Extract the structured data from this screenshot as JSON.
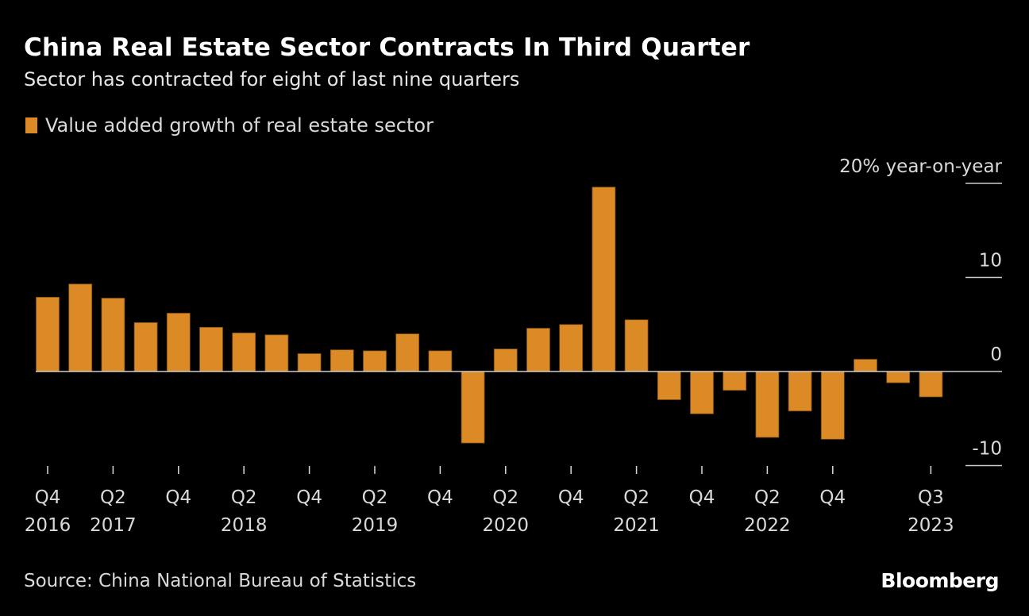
{
  "header": {
    "title": "China Real Estate Sector Contracts In Third Quarter",
    "subtitle": "Sector has contracted for eight of last nine quarters"
  },
  "legend": {
    "label": "Value added growth of real estate sector",
    "color": "#dc8a26"
  },
  "footer": {
    "source": "Source: China National Bureau of Statistics",
    "brand": "Bloomberg"
  },
  "colors": {
    "bar": "#dc8a26",
    "bar_edge": "#7a4a12",
    "zero_line": "#cccccc",
    "axis_text": "#d9d9d9",
    "background": "#000000"
  },
  "chart_data": {
    "type": "bar",
    "title": "China Real Estate Sector Contracts In Third Quarter",
    "subtitle": "Sector has contracted for eight of last nine quarters",
    "xlabel": "",
    "ylabel": "% year-on-year",
    "y_axis_position": "right",
    "y_unit_label": "20% year-on-year",
    "ylim": [
      -10,
      20
    ],
    "yticks": [
      {
        "value": 20,
        "label": "20% year-on-year"
      },
      {
        "value": 10,
        "label": "10"
      },
      {
        "value": 0,
        "label": "0"
      },
      {
        "value": -10,
        "label": "-10"
      }
    ],
    "legend": [
      "Value added growth of real estate sector"
    ],
    "legend_position": "top-left",
    "grid": false,
    "categories": [
      "Q4 2016",
      "Q1 2017",
      "Q2 2017",
      "Q3 2017",
      "Q4 2017",
      "Q1 2018",
      "Q2 2018",
      "Q3 2018",
      "Q4 2018",
      "Q1 2019",
      "Q2 2019",
      "Q3 2019",
      "Q4 2019",
      "Q1 2020",
      "Q2 2020",
      "Q3 2020",
      "Q4 2020",
      "Q1 2021",
      "Q2 2021",
      "Q3 2021",
      "Q4 2021",
      "Q1 2022",
      "Q2 2022",
      "Q3 2022",
      "Q4 2022",
      "Q1 2023",
      "Q2 2023",
      "Q3 2023"
    ],
    "series": [
      {
        "name": "Value added growth of real estate sector",
        "values": [
          7.9,
          9.3,
          7.8,
          5.2,
          6.2,
          4.7,
          4.1,
          3.9,
          1.9,
          2.3,
          2.2,
          4.0,
          2.2,
          -7.6,
          2.4,
          4.6,
          5.0,
          19.6,
          5.5,
          -3.0,
          -4.5,
          -2.0,
          -7.0,
          -4.2,
          -7.2,
          1.3,
          -1.2,
          -2.7
        ]
      }
    ],
    "xticks": [
      {
        "index": 0,
        "quarter": "Q4",
        "year": "2016"
      },
      {
        "index": 2,
        "quarter": "Q2",
        "year": "2017"
      },
      {
        "index": 4,
        "quarter": "Q4",
        "year": ""
      },
      {
        "index": 6,
        "quarter": "Q2",
        "year": "2018"
      },
      {
        "index": 8,
        "quarter": "Q4",
        "year": ""
      },
      {
        "index": 10,
        "quarter": "Q2",
        "year": "2019"
      },
      {
        "index": 12,
        "quarter": "Q4",
        "year": ""
      },
      {
        "index": 14,
        "quarter": "Q2",
        "year": "2020"
      },
      {
        "index": 16,
        "quarter": "Q4",
        "year": ""
      },
      {
        "index": 18,
        "quarter": "Q2",
        "year": "2021"
      },
      {
        "index": 20,
        "quarter": "Q4",
        "year": ""
      },
      {
        "index": 22,
        "quarter": "Q2",
        "year": "2022"
      },
      {
        "index": 24,
        "quarter": "Q4",
        "year": ""
      },
      {
        "index": 27,
        "quarter": "Q3",
        "year": "2023"
      }
    ]
  }
}
